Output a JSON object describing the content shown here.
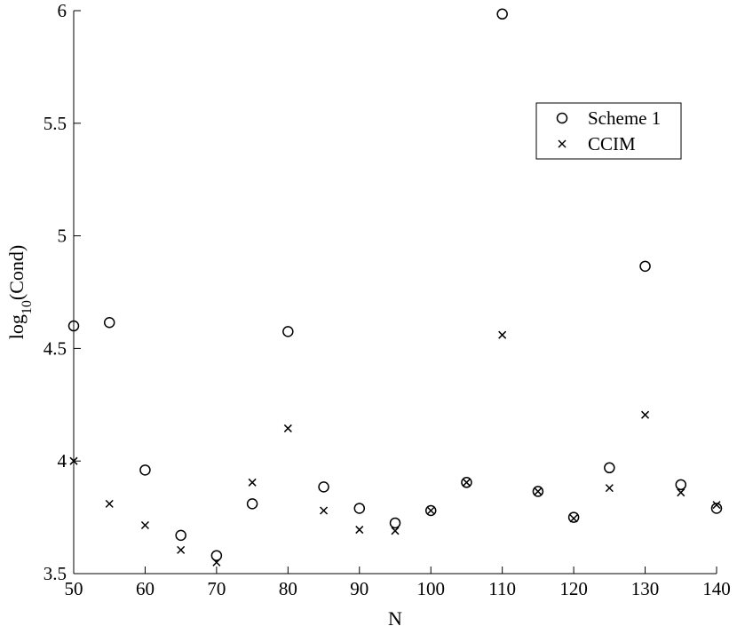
{
  "chart_data": {
    "type": "scatter",
    "xlabel": "N",
    "ylabel": "(Cond)",
    "ylabel_prefix": "log",
    "ylabel_subscript": "10",
    "xlim": [
      50,
      140
    ],
    "ylim": [
      3.5,
      6
    ],
    "xticks": [
      "50",
      "60",
      "70",
      "80",
      "90",
      "100",
      "110",
      "120",
      "130",
      "140"
    ],
    "yticks": [
      "3.5",
      "4",
      "4.5",
      "5",
      "5.5",
      "6"
    ],
    "grid": false,
    "legend_position": "top-right",
    "x": [
      50,
      55,
      60,
      65,
      70,
      75,
      80,
      85,
      90,
      95,
      100,
      105,
      110,
      115,
      120,
      125,
      130,
      135,
      140
    ],
    "series": [
      {
        "name": "Scheme 1",
        "marker": "circle",
        "color": "#000000",
        "values": [
          4.6,
          4.615,
          3.96,
          3.67,
          3.58,
          3.81,
          4.575,
          3.885,
          3.79,
          3.725,
          3.78,
          3.905,
          5.985,
          3.865,
          3.75,
          3.97,
          4.865,
          3.895,
          3.79
        ]
      },
      {
        "name": "CCIM",
        "marker": "x",
        "color": "#000000",
        "values": [
          4.0,
          3.81,
          3.715,
          3.605,
          3.55,
          3.905,
          4.145,
          3.78,
          3.695,
          3.69,
          3.78,
          3.905,
          4.56,
          3.865,
          3.745,
          3.88,
          4.205,
          3.86,
          3.805
        ]
      }
    ]
  }
}
